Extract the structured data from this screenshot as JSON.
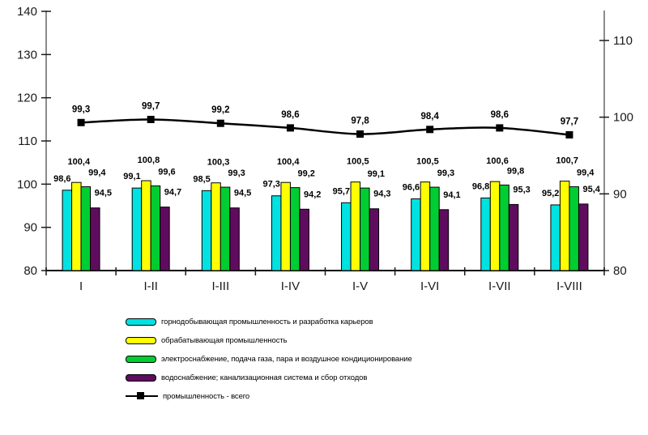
{
  "chart_data": {
    "type": "bar",
    "title": "",
    "xlabel": "",
    "ylabel": "",
    "grid": false,
    "legend_position": "bottom-left",
    "value_labels": true,
    "decimal_separator": ",",
    "categories": [
      "I",
      "I-II",
      "I-III",
      "I-IV",
      "I-V",
      "I-VI",
      "I-VII",
      "I-VIII"
    ],
    "series": [
      {
        "name": "горнодобывающая промышленность и разработка карьеров",
        "type": "bar",
        "axis": "left",
        "color": "#00e1e1",
        "values": [
          98.6,
          99.1,
          98.5,
          97.3,
          95.7,
          96.6,
          96.8,
          95.2
        ]
      },
      {
        "name": "обрабатывающая промышленность",
        "type": "bar",
        "axis": "left",
        "color": "#ffff00",
        "values": [
          100.4,
          100.8,
          100.3,
          100.4,
          100.5,
          100.5,
          100.6,
          100.7
        ]
      },
      {
        "name": "электроснабжение, подача газа, пара и воздушное кондиционирование",
        "type": "bar",
        "axis": "left",
        "color": "#00cd32",
        "values": [
          99.4,
          99.6,
          99.3,
          99.2,
          99.1,
          99.3,
          99.8,
          99.4
        ]
      },
      {
        "name": "водоснабжение; канализационная система и сбор отходов",
        "type": "bar",
        "axis": "left",
        "color": "#5f0c5f",
        "values": [
          94.5,
          94.7,
          94.5,
          94.2,
          94.3,
          94.1,
          95.3,
          95.4
        ]
      },
      {
        "name": "промышленность - всего",
        "type": "line",
        "axis": "right",
        "color": "#000000",
        "values": [
          99.3,
          99.7,
          99.2,
          98.6,
          97.8,
          98.4,
          98.6,
          97.7
        ]
      }
    ],
    "left_axis": {
      "min": 80,
      "max": 140,
      "step": 10,
      "ticks": [
        80,
        90,
        100,
        110,
        120,
        130,
        140
      ]
    },
    "right_axis": {
      "min": 80,
      "max": 113.8,
      "step": 10,
      "ticks": [
        80,
        90,
        100,
        110
      ]
    },
    "colors": {
      "vertical_axis_line": "#8c8c8c",
      "bottom_axis_line": "#000000",
      "tick_mark": "#1a1a1a",
      "bar_border": "#000000",
      "background": "#ffffff"
    }
  }
}
